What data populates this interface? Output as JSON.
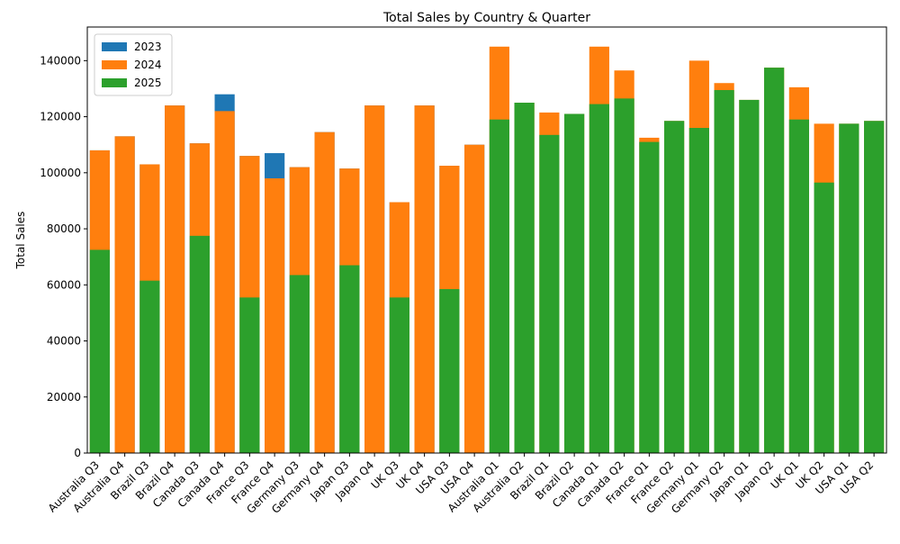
{
  "chart_data": {
    "type": "bar",
    "title": "Total Sales by Country & Quarter",
    "xlabel": "",
    "ylabel": "Total Sales",
    "ylim": [
      0,
      152000
    ],
    "yticks": [
      0,
      20000,
      40000,
      60000,
      80000,
      100000,
      120000,
      140000
    ],
    "grid": false,
    "legend_position": "top-left",
    "categories": [
      "Australia Q3",
      "Australia Q4",
      "Brazil Q3",
      "Brazil Q4",
      "Canada Q3",
      "Canada Q4",
      "France Q3",
      "France Q4",
      "Germany Q3",
      "Germany Q4",
      "Japan Q3",
      "Japan Q4",
      "UK Q3",
      "UK Q4",
      "USA Q3",
      "USA Q4",
      "Australia Q1",
      "Australia Q2",
      "Brazil Q1",
      "Brazil Q2",
      "Canada Q1",
      "Canada Q2",
      "France Q1",
      "France Q2",
      "Germany Q1",
      "Germany Q2",
      "Japan Q1",
      "Japan Q2",
      "UK Q1",
      "UK Q2",
      "USA Q1",
      "USA Q2"
    ],
    "series": [
      {
        "name": "2023",
        "color": "#1f77b4",
        "values": [
          108000,
          113000,
          103000,
          124000,
          110500,
          128000,
          106000,
          107000,
          102000,
          114500,
          101500,
          124000,
          89500,
          124000,
          102500,
          110000,
          0,
          0,
          0,
          0,
          0,
          0,
          0,
          0,
          0,
          0,
          0,
          0,
          0,
          0,
          0,
          0
        ]
      },
      {
        "name": "2024",
        "color": "#ff7f0e",
        "values": [
          108000,
          113000,
          103000,
          124000,
          110500,
          122000,
          106000,
          98000,
          102000,
          114500,
          101500,
          124000,
          89500,
          124000,
          102500,
          110000,
          145000,
          125000,
          121500,
          121000,
          145000,
          136500,
          112500,
          118500,
          140000,
          132000,
          126000,
          137500,
          130500,
          117500,
          117500,
          118500
        ]
      },
      {
        "name": "2025",
        "color": "#2ca02c",
        "values": [
          72500,
          0,
          61500,
          0,
          77500,
          0,
          55500,
          0,
          63500,
          0,
          67000,
          0,
          55500,
          0,
          58500,
          0,
          119000,
          125000,
          113500,
          121000,
          124500,
          126500,
          111000,
          118500,
          116000,
          129500,
          126000,
          137500,
          119000,
          96500,
          117500,
          118500
        ]
      }
    ]
  }
}
